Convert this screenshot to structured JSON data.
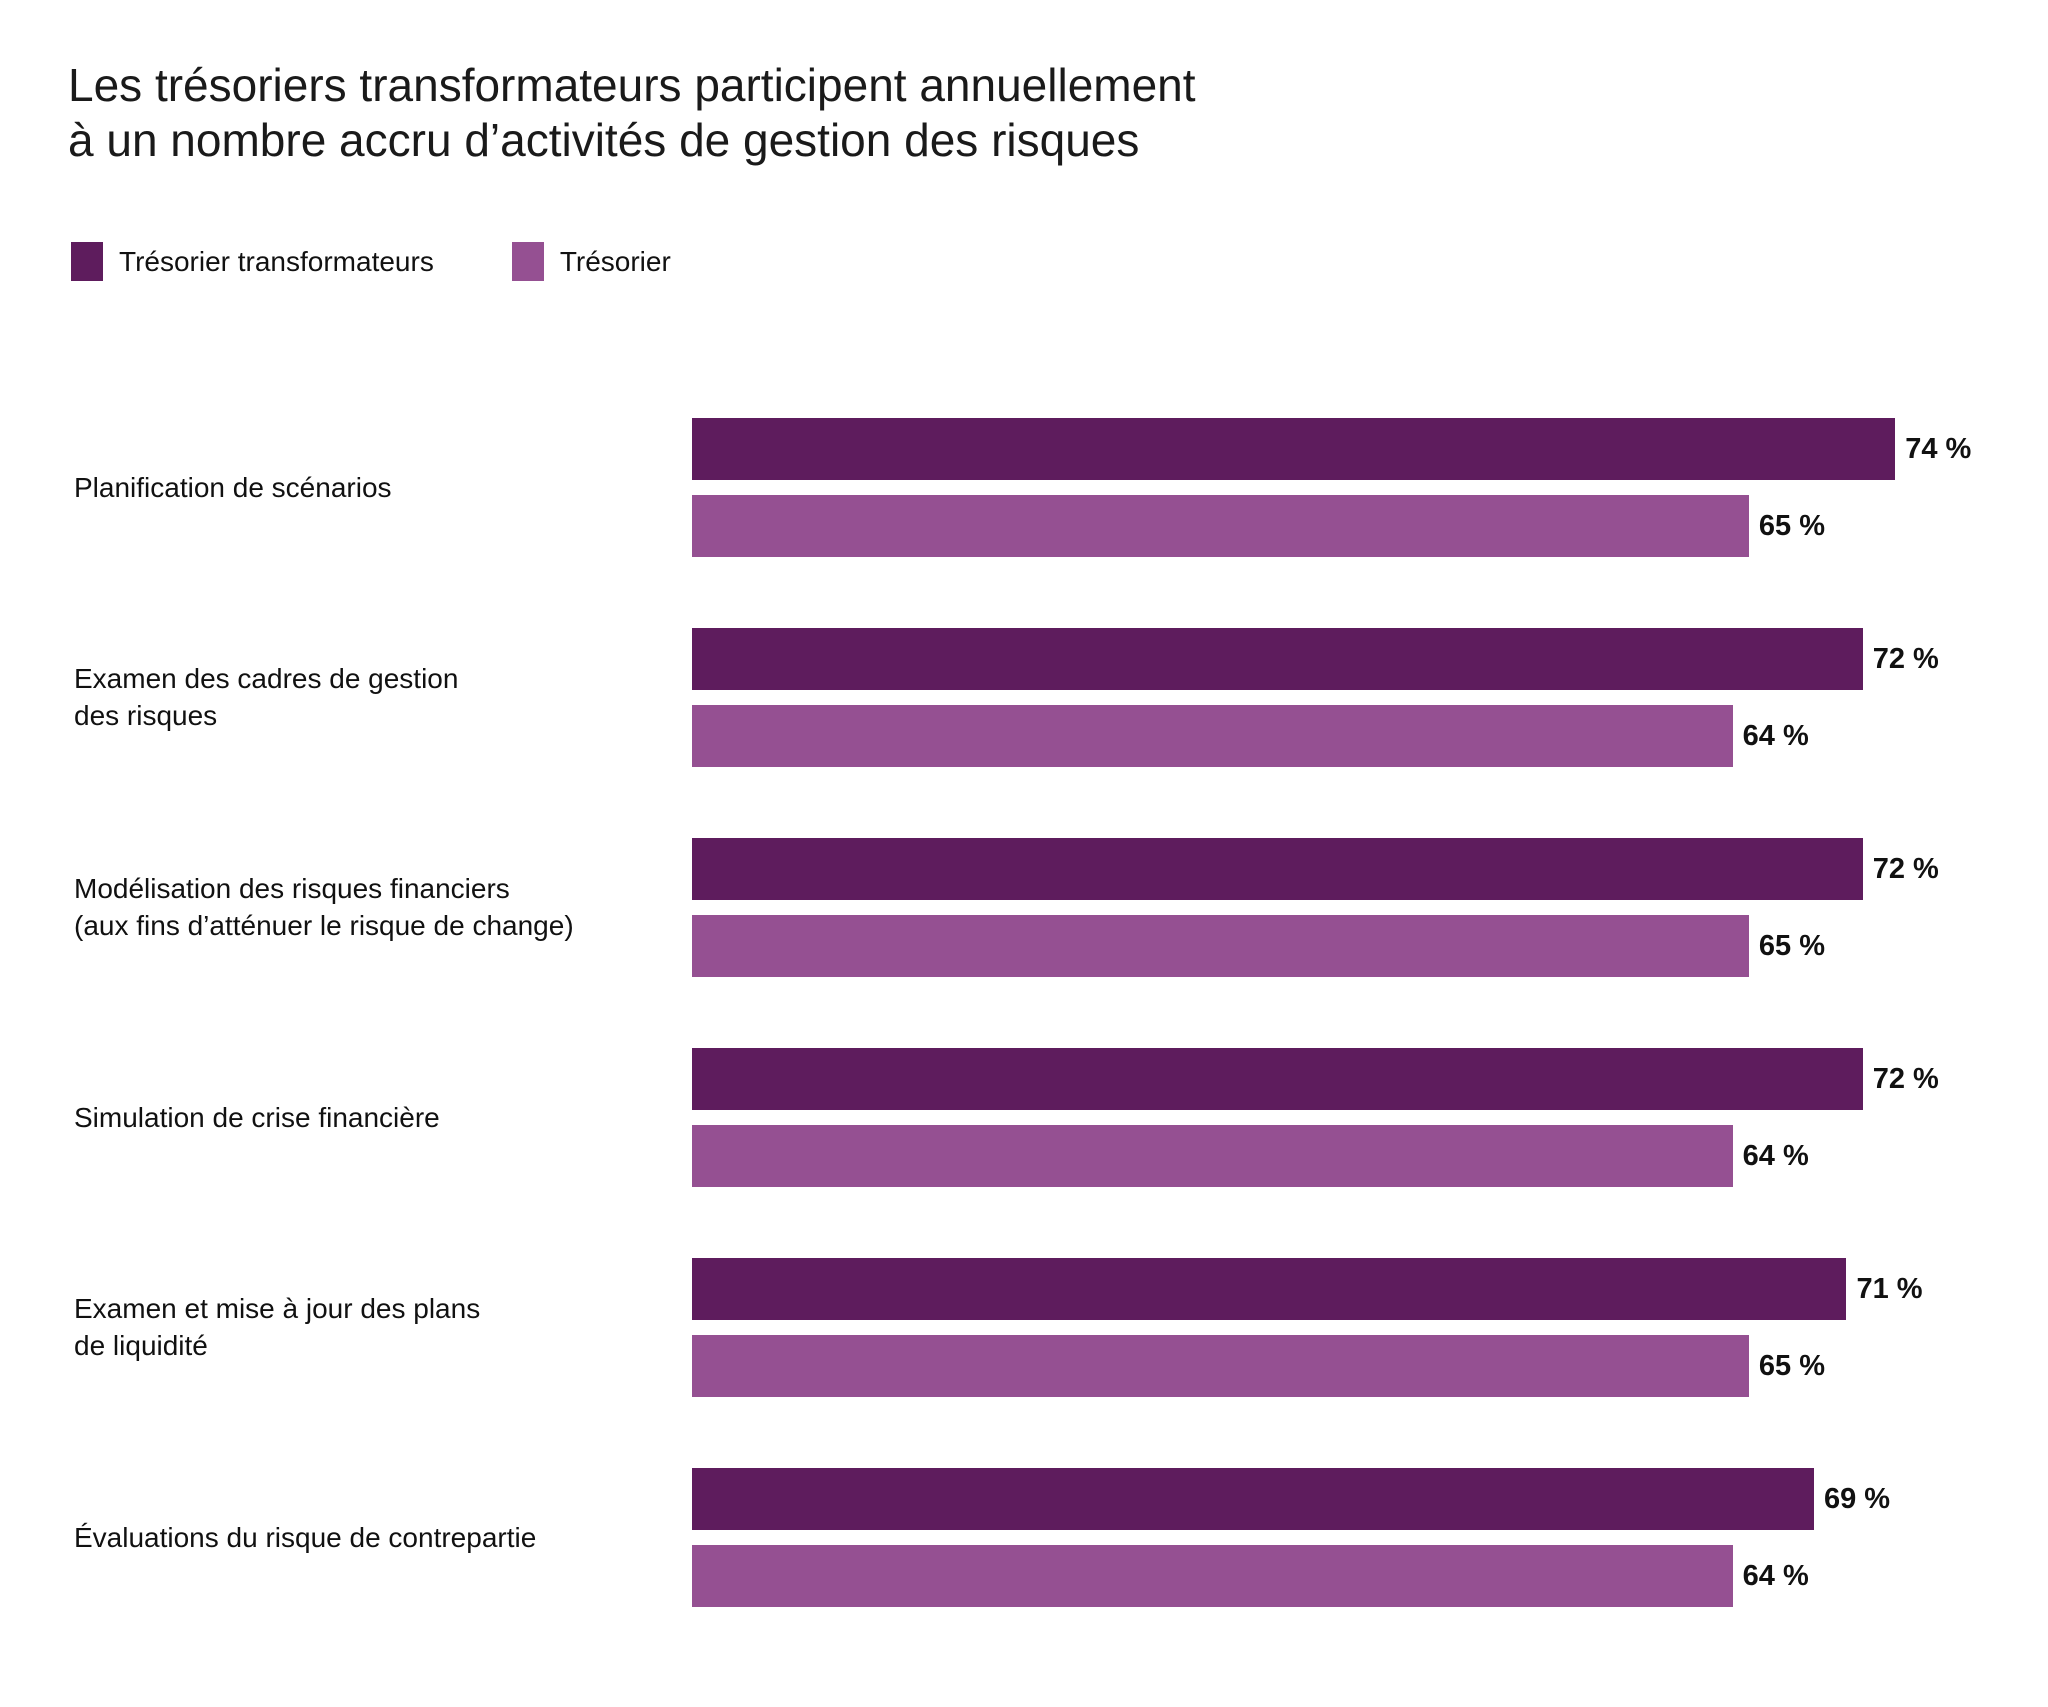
{
  "colors": {
    "transformateurs": "#5e1c5d",
    "tresorier": "#955092"
  },
  "chart_data": {
    "type": "bar",
    "orientation": "horizontal",
    "title": "Les trésoriers transformateurs participent annuellement\nà un nombre accru d’activités de gestion des risques",
    "legend": [
      "Trésorier transformateurs",
      "Trésorier"
    ],
    "legend_position": "top-left",
    "categories": [
      "Planification de scénarios",
      "Examen des cadres de gestion\ndes risques",
      "Modélisation des risques financiers\n(aux fins d’atténuer le risque de change)",
      "Simulation de crise financière",
      "Examen et mise à jour des plans\nde liquidité",
      "Évaluations du risque de contrepartie"
    ],
    "series": [
      {
        "name": "Trésorier transformateurs",
        "values": [
          74,
          72,
          72,
          72,
          71,
          69
        ],
        "labels": [
          "74 %",
          "72 %",
          "72 %",
          "72 %",
          "71 %",
          "69 %"
        ]
      },
      {
        "name": "Trésorier",
        "values": [
          65,
          64,
          65,
          64,
          65,
          64
        ],
        "labels": [
          "65 %",
          "64 %",
          "65 %",
          "64 %",
          "65 %",
          "64 %"
        ]
      }
    ],
    "xlim": [
      0,
      100
    ],
    "grid": false,
    "xlabel": "",
    "ylabel": ""
  }
}
